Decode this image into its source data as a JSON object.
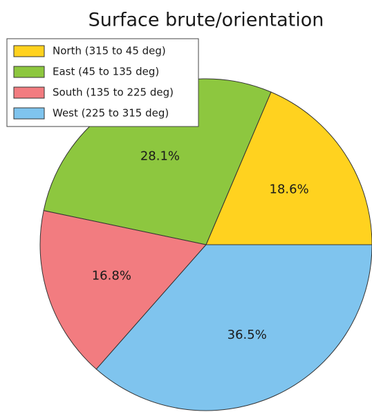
{
  "chart_data": {
    "type": "pie",
    "title": "Surface brute/orientation",
    "categories": [
      "North (315 to 45 deg)",
      "East (45 to 135 deg)",
      "South (135 to 225 deg)",
      "West (225 to 315 deg)"
    ],
    "values": [
      18.6,
      28.1,
      16.8,
      36.5
    ],
    "value_labels": [
      "18.6%",
      "28.1%",
      "16.8%",
      "36.5%"
    ],
    "colors": [
      "#ffd21f",
      "#8dc73f",
      "#f27c80",
      "#7fc4ee"
    ],
    "legend": "upper left"
  }
}
